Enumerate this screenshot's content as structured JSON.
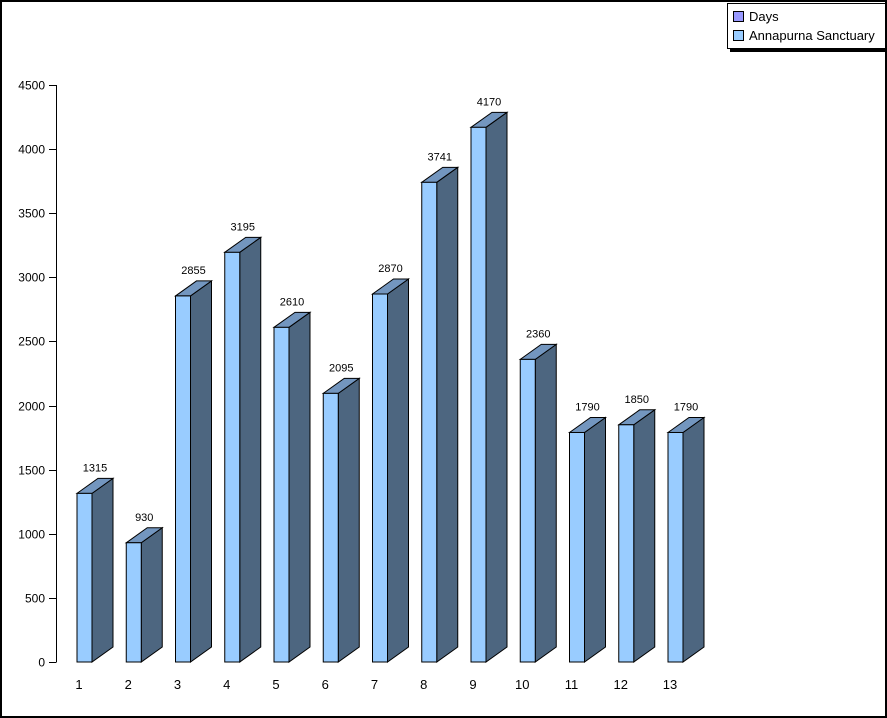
{
  "window": {
    "background": "#FFFFFF",
    "border_color": "#000000"
  },
  "legend": {
    "position": "top-right",
    "items": [
      {
        "label": "Days",
        "marker_color": "#9999FF"
      },
      {
        "label": "Annapurna Sanctuary",
        "marker_color": "#99CCFF"
      }
    ]
  },
  "chart_data": {
    "type": "bar",
    "style": "3d-bar",
    "title": "",
    "xlabel": "",
    "ylabel": "",
    "categories": [
      "1",
      "2",
      "3",
      "4",
      "5",
      "6",
      "7",
      "8",
      "9",
      "10",
      "11",
      "12",
      "13"
    ],
    "series": [
      {
        "name": "Annapurna Sanctuary",
        "values": [
          1315,
          930,
          2855,
          3195,
          2610,
          2095,
          2870,
          3741,
          4170,
          2360,
          1790,
          1850,
          1790
        ]
      }
    ],
    "data_labels": [
      1315,
      930,
      2855,
      3195,
      2610,
      2095,
      2870,
      3741,
      4170,
      2360,
      1790,
      1850,
      1790
    ],
    "ylim": [
      0,
      4500
    ],
    "y_ticks": [
      0,
      500,
      1000,
      1500,
      2000,
      2500,
      3000,
      3500,
      4000,
      4500
    ],
    "grid": false,
    "legend_position": "top-right",
    "colors": {
      "bar_front": "#99CCFF",
      "bar_side": "#4D6680",
      "bar_top": "#7396BF",
      "bar_outline": "#000000",
      "axis": "#000000",
      "text": "#000000"
    }
  }
}
